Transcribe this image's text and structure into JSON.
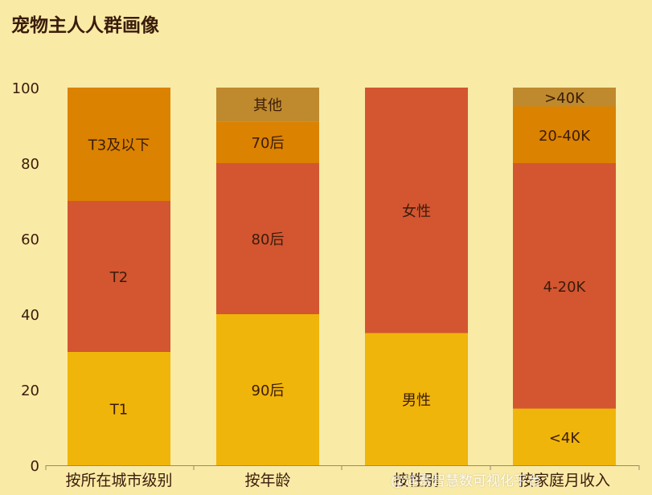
{
  "title": "宠物主人人群画像",
  "watermark": "@迪赛智慧数可视化平台",
  "colors": {
    "background": "#F9EAA6",
    "axis": "#9A8A6A",
    "segments": [
      "#F0B50A",
      "#D35631",
      "#DB8200",
      "#BF8A2D"
    ]
  },
  "chart_data": {
    "type": "bar",
    "stacked": true,
    "title": "宠物主人人群画像",
    "ylim": [
      0,
      100
    ],
    "yticks": [
      0,
      20,
      40,
      60,
      80,
      100
    ],
    "grid": false,
    "categories": [
      "按所在城市级别",
      "按年龄",
      "按性别",
      "按家庭月收入"
    ],
    "bars": [
      {
        "category": "按所在城市级别",
        "segments": [
          {
            "label": "T1",
            "value": 30
          },
          {
            "label": "T2",
            "value": 40
          },
          {
            "label": "T3及以下",
            "value": 30
          }
        ]
      },
      {
        "category": "按年龄",
        "segments": [
          {
            "label": "90后",
            "value": 40
          },
          {
            "label": "80后",
            "value": 40
          },
          {
            "label": "70后",
            "value": 11
          },
          {
            "label": "其他",
            "value": 9
          }
        ]
      },
      {
        "category": "按性别",
        "segments": [
          {
            "label": "男性",
            "value": 35
          },
          {
            "label": "女性",
            "value": 65
          }
        ]
      },
      {
        "category": "按家庭月收入",
        "segments": [
          {
            "label": "<4K",
            "value": 15
          },
          {
            "label": "4-20K",
            "value": 65
          },
          {
            "label": "20-40K",
            "value": 15
          },
          {
            "label": ">40K",
            "value": 5
          }
        ]
      }
    ]
  }
}
